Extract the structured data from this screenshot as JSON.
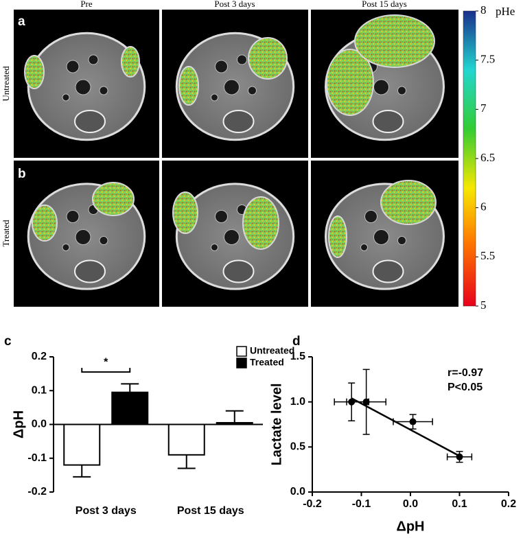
{
  "figure": {
    "column_labels": [
      "Pre",
      "Post 3 days",
      "Post 15 days"
    ],
    "row_labels": [
      "Untreated",
      "Treated"
    ],
    "panel_labels": [
      "a",
      "b",
      "c",
      "d"
    ],
    "colorbar": {
      "label": "pHe",
      "lim": [
        5,
        8
      ],
      "ticks": [
        5,
        5.5,
        6,
        6.5,
        7,
        7.5,
        8
      ]
    }
  },
  "chart_data": [
    {
      "type": "bar",
      "y_label": "ΔpH",
      "categories": [
        "Post 3 days",
        "Post 15 days"
      ],
      "series": [
        {
          "name": "Untreated",
          "color": "#ffffff",
          "values": [
            -0.12,
            -0.09
          ],
          "errors": [
            0.035,
            0.04
          ]
        },
        {
          "name": "Treated",
          "color": "#000000",
          "values": [
            0.095,
            0.005
          ],
          "errors": [
            0.025,
            0.035
          ]
        }
      ],
      "ylim": [
        -0.2,
        0.2
      ],
      "yticks": [
        0.2,
        0.1,
        {
          "value": 0,
          "label": "0.0"
        },
        -0.1,
        -0.2
      ],
      "significance": {
        "label": "*",
        "y": 0.155
      },
      "legend": "top-right"
    },
    {
      "type": "scatter",
      "x_label": "ΔpH",
      "y_label": "Lactate level",
      "x": [
        -0.12,
        -0.09,
        0.005,
        0.1
      ],
      "y": [
        1.0,
        1.0,
        0.78,
        0.39
      ],
      "x_err": [
        0.035,
        0.04,
        0.04,
        0.025
      ],
      "y_err": [
        0.21,
        0.36,
        0.08,
        0.06
      ],
      "fit_line": {
        "x": [
          -0.12,
          0.1
        ],
        "y": [
          1.04,
          0.4
        ]
      },
      "annotations": [
        "r=-0.97",
        "P<0.05"
      ],
      "xlim": [
        -0.2,
        0.2
      ],
      "xticks": [
        -0.2,
        -0.1,
        {
          "value": 0,
          "label": "0.0"
        },
        0.1,
        0.2
      ],
      "ylim": [
        0,
        1.5
      ],
      "yticks": [
        {
          "value": 0,
          "label": "0.0"
        },
        0.5,
        {
          "value": 1,
          "label": "1.0"
        },
        1.5
      ]
    }
  ]
}
